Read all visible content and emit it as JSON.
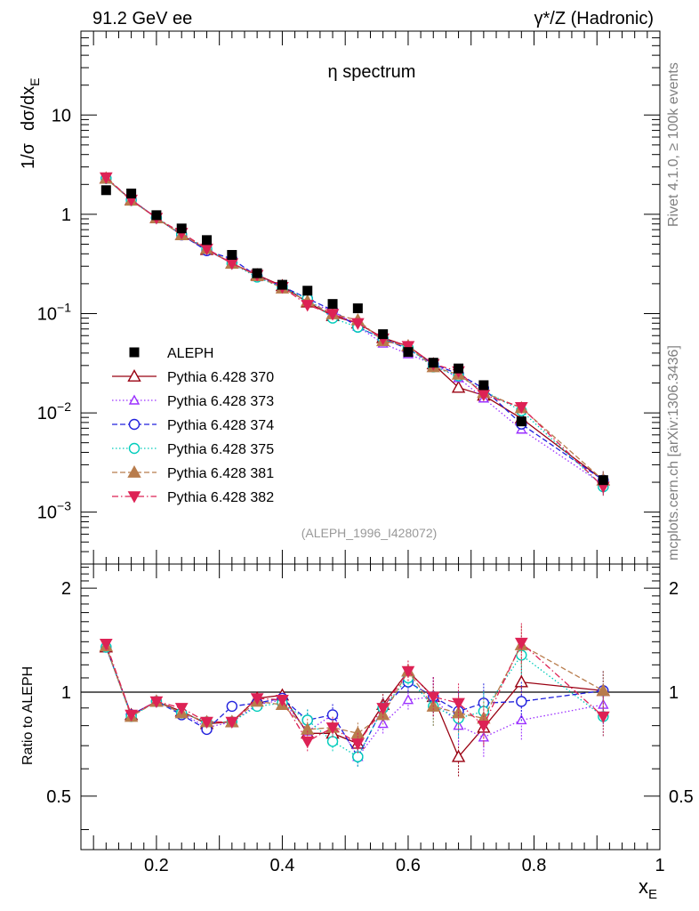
{
  "header": {
    "energy_label": "91.2 GeV ee",
    "process_label": "γ*/Z (Hadronic)"
  },
  "sidebar": {
    "rivet_label": "Rivet 4.1.0, ≥ 100k events",
    "site_label": "mcplots.cern.ch [arXiv:1306.3436]"
  },
  "chart_data": [
    {
      "type": "scatter",
      "panel": "main",
      "title": "η spectrum",
      "ylabel": "1/σ  dσ/dx_E",
      "yscale": "log",
      "xlim": [
        0.08,
        1.0
      ],
      "ylim": [
        0.0003,
        70
      ],
      "ytick_labels": [
        "10^-3",
        "10^-2",
        "10^-1",
        "1",
        "10"
      ],
      "source_label": "(ALEPH_1996_I428072)",
      "x": [
        0.12,
        0.16,
        0.2,
        0.24,
        0.28,
        0.32,
        0.36,
        0.4,
        0.44,
        0.48,
        0.52,
        0.56,
        0.6,
        0.64,
        0.68,
        0.72,
        0.78,
        0.91
      ],
      "series": [
        {
          "name": "ALEPH",
          "color": "#000000",
          "marker": "square",
          "line": "none",
          "values": [
            1.75,
            1.62,
            0.98,
            0.72,
            0.55,
            0.39,
            0.255,
            0.195,
            0.17,
            0.125,
            0.113,
            0.062,
            0.041,
            0.032,
            0.028,
            0.019,
            0.0082,
            0.0021
          ]
        },
        {
          "name": "Pythia 6.428 370",
          "color": "#990011",
          "marker": "triangle-open",
          "line": "solid",
          "values": [
            2.3,
            1.4,
            0.92,
            0.62,
            0.44,
            0.32,
            0.245,
            0.19,
            0.13,
            0.095,
            0.08,
            0.057,
            0.047,
            0.031,
            0.018,
            0.015,
            0.0088,
            0.0021
          ]
        },
        {
          "name": "Pythia 6.428 373",
          "color": "#9b30ff",
          "marker": "triangle-open-small",
          "line": "dotted",
          "values": [
            2.3,
            1.4,
            0.92,
            0.62,
            0.44,
            0.32,
            0.233,
            0.185,
            0.13,
            0.107,
            0.074,
            0.05,
            0.039,
            0.031,
            0.0224,
            0.014,
            0.0068,
            0.0019
          ]
        },
        {
          "name": "Pythia 6.428 374",
          "color": "#2222dd",
          "marker": "circle-open",
          "line": "dashed",
          "values": [
            2.3,
            1.4,
            0.92,
            0.62,
            0.43,
            0.355,
            0.238,
            0.188,
            0.142,
            0.108,
            0.073,
            0.056,
            0.044,
            0.031,
            0.0246,
            0.0176,
            0.0077,
            0.0021
          ]
        },
        {
          "name": "Pythia 6.428 375",
          "color": "#00ccbb",
          "marker": "circle-open",
          "line": "dotted",
          "values": [
            2.3,
            1.38,
            0.92,
            0.63,
            0.45,
            0.32,
            0.233,
            0.182,
            0.141,
            0.09,
            0.073,
            0.056,
            0.045,
            0.029,
            0.0236,
            0.0167,
            0.0105,
            0.0018
          ]
        },
        {
          "name": "Pythia 6.428 381",
          "color": "#b87c4c",
          "marker": "triangle-filled",
          "line": "dashed",
          "values": [
            2.3,
            1.38,
            0.92,
            0.62,
            0.45,
            0.32,
            0.24,
            0.18,
            0.133,
            0.099,
            0.086,
            0.053,
            0.047,
            0.029,
            0.0244,
            0.016,
            0.0112,
            0.0021
          ]
        },
        {
          "name": "Pythia 6.428 382",
          "color": "#dd2255",
          "marker": "triangle-down-filled",
          "line": "dashdot",
          "values": [
            2.35,
            1.4,
            0.92,
            0.65,
            0.45,
            0.32,
            0.245,
            0.185,
            0.122,
            0.099,
            0.08,
            0.056,
            0.047,
            0.031,
            0.0262,
            0.0152,
            0.0114,
            0.0018
          ]
        }
      ]
    },
    {
      "type": "line",
      "panel": "ratio",
      "ylabel": "Ratio to ALEPH",
      "xlabel": "x_E",
      "xlim": [
        0.08,
        1.0
      ],
      "ylim": [
        0.35,
        2.35
      ],
      "xtick_labels": [
        "0.2",
        "0.4",
        "0.6",
        "0.8",
        "1"
      ],
      "ytick_labels": [
        "0.5",
        "1",
        "2"
      ],
      "reference_line": 1.0,
      "x": [
        0.12,
        0.16,
        0.2,
        0.24,
        0.28,
        0.32,
        0.36,
        0.4,
        0.44,
        0.48,
        0.52,
        0.56,
        0.6,
        0.64,
        0.68,
        0.72,
        0.78,
        0.91
      ],
      "series": [
        {
          "name": "Pythia 6.428 370",
          "values": [
            1.35,
            0.86,
            0.94,
            0.88,
            0.81,
            0.82,
            0.96,
            0.98,
            0.76,
            0.76,
            0.71,
            0.92,
            1.15,
            0.97,
            0.65,
            0.79,
            1.07,
            1.01
          ]
        },
        {
          "name": "Pythia 6.428 373",
          "values": [
            1.35,
            0.86,
            0.94,
            0.87,
            0.79,
            0.82,
            0.92,
            0.95,
            0.77,
            0.86,
            0.65,
            0.81,
            0.95,
            0.97,
            0.8,
            0.74,
            0.83,
            0.92
          ]
        },
        {
          "name": "Pythia 6.428 374",
          "values": [
            1.35,
            0.86,
            0.94,
            0.86,
            0.78,
            0.91,
            0.93,
            0.96,
            0.83,
            0.86,
            0.65,
            0.9,
            1.07,
            0.97,
            0.88,
            0.93,
            0.94,
            1.01
          ]
        },
        {
          "name": "Pythia 6.428 375",
          "values": [
            1.35,
            0.85,
            0.94,
            0.87,
            0.82,
            0.82,
            0.91,
            0.93,
            0.83,
            0.72,
            0.65,
            0.9,
            1.1,
            0.91,
            0.84,
            0.88,
            1.28,
            0.85
          ]
        },
        {
          "name": "Pythia 6.428 381",
          "values": [
            1.36,
            0.85,
            0.94,
            0.87,
            0.82,
            0.82,
            0.94,
            0.92,
            0.78,
            0.79,
            0.76,
            0.86,
            1.15,
            0.91,
            0.87,
            0.84,
            1.37,
            1.01
          ]
        },
        {
          "name": "Pythia 6.428 382",
          "values": [
            1.38,
            0.86,
            0.94,
            0.9,
            0.82,
            0.82,
            0.96,
            0.95,
            0.72,
            0.79,
            0.71,
            0.9,
            1.15,
            0.97,
            0.93,
            0.8,
            1.39,
            0.85
          ]
        }
      ]
    }
  ]
}
